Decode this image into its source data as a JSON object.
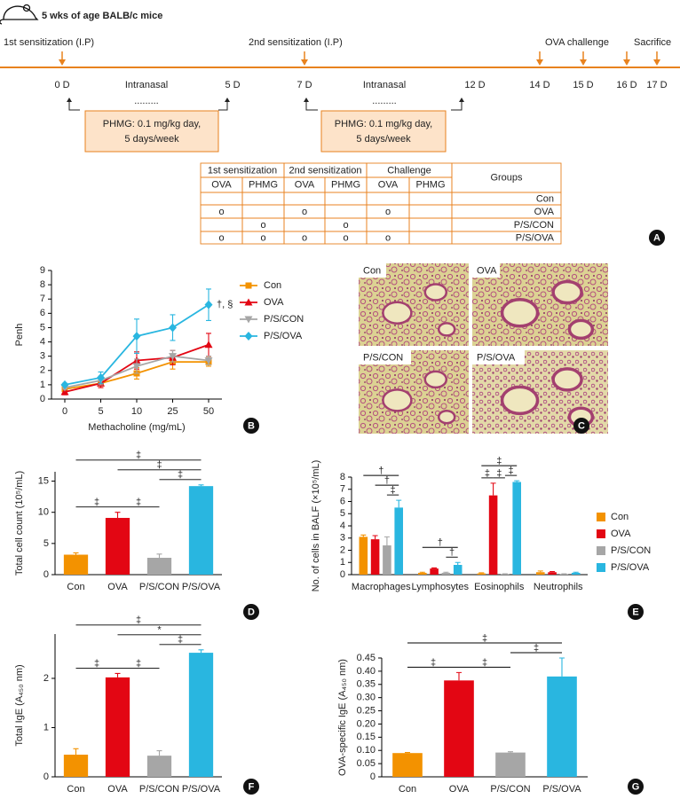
{
  "timeline": {
    "title": "5 wks of age BALB/c mice",
    "events": [
      "1st sensitization (I.P)",
      "2nd sensitization (I.P)",
      "OVA challenge",
      "Sacrifice"
    ],
    "days": [
      "0 D",
      "5 D",
      "7 D",
      "12 D",
      "14 D",
      "15 D",
      "16 D",
      "17 D"
    ],
    "phases": [
      {
        "label": "Intranasal",
        "dots": "........."
      },
      {
        "label": "Intranasal",
        "dots": "........."
      }
    ],
    "treatments": [
      [
        "PHMG: 0.1 mg/kg day,",
        "5 days/week"
      ],
      [
        "PHMG: 0.1 mg/kg day,",
        "5 days/week"
      ]
    ],
    "panel_label": "A"
  },
  "table": {
    "group_headers": [
      "1st sensitization",
      "2nd sensitization",
      "Challenge"
    ],
    "groups_header": "Groups",
    "subheaders": [
      "OVA",
      "PHMG",
      "OVA",
      "PHMG",
      "OVA",
      "PHMG"
    ],
    "rows": [
      [
        null,
        null,
        null,
        null,
        null,
        null,
        "Con"
      ],
      [
        "o",
        null,
        "o",
        null,
        "o",
        null,
        "OVA"
      ],
      [
        null,
        "o",
        null,
        "o",
        null,
        null,
        "P/S/CON"
      ],
      [
        "o",
        "o",
        "o",
        "o",
        "o",
        null,
        "P/S/OVA"
      ]
    ]
  },
  "histology": {
    "labels": [
      "Con",
      "OVA",
      "P/S/CON",
      "P/S/OVA"
    ],
    "panel_label": "C"
  },
  "chart_data": [
    {
      "type": "line",
      "panel_label": "B",
      "categories": [
        "0",
        "5",
        "10",
        "25",
        "50"
      ],
      "x_label": "Methacholine (mg/mL)",
      "y_label": "Penh",
      "ylim": [
        0,
        9
      ],
      "yticks": [
        0,
        1,
        2,
        3,
        4,
        5,
        6,
        7,
        8,
        9
      ],
      "annotation": "†, §",
      "series": [
        {
          "name": "Con",
          "color": "#f39200",
          "marker": "square",
          "values": [
            0.7,
            1.1,
            1.8,
            2.6,
            2.6
          ],
          "errors": [
            0.1,
            0.3,
            0.4,
            0.5,
            0.3
          ]
        },
        {
          "name": "OVA",
          "color": "#e30613",
          "marker": "triangle-up",
          "values": [
            0.5,
            1.1,
            2.7,
            2.9,
            3.8
          ],
          "errors": [
            0.2,
            0.3,
            0.6,
            0.5,
            0.8
          ]
        },
        {
          "name": "P/S/CON",
          "color": "#a6a6a6",
          "marker": "triangle-down",
          "values": [
            0.8,
            1.3,
            2.3,
            3.0,
            2.7
          ],
          "errors": [
            0.1,
            0.3,
            0.5,
            0.4,
            0.3
          ]
        },
        {
          "name": "P/S/OVA",
          "color": "#29b6e0",
          "marker": "diamond",
          "values": [
            1.0,
            1.5,
            4.4,
            5.0,
            6.6
          ],
          "errors": [
            0.1,
            0.4,
            1.2,
            0.9,
            1.1
          ]
        }
      ]
    },
    {
      "type": "bar",
      "panel_label": "D",
      "categories": [
        "Con",
        "OVA",
        "P/S/CON",
        "P/S/OVA"
      ],
      "colors": [
        "#f39200",
        "#e30613",
        "#a6a6a6",
        "#29b6e0"
      ],
      "values": [
        3.2,
        9.1,
        2.7,
        14.2
      ],
      "errors": [
        0.3,
        0.9,
        0.6,
        0.2
      ],
      "y_label": "Total cell count (10⁵/mL)",
      "ylim": [
        0,
        16.5
      ],
      "yticks": [
        0,
        5,
        10,
        15
      ],
      "brackets": [
        {
          "between": [
            "Con",
            "OVA"
          ],
          "label": "‡"
        },
        {
          "between": [
            "OVA",
            "P/S/CON"
          ],
          "label": "‡"
        },
        {
          "between": [
            "P/S/CON",
            "P/S/OVA"
          ],
          "label": "‡"
        },
        {
          "between": [
            "OVA",
            "P/S/OVA"
          ],
          "label": "‡"
        },
        {
          "between": [
            "Con",
            "P/S/OVA"
          ],
          "label": "‡"
        }
      ]
    },
    {
      "type": "bar",
      "panel_label": "E",
      "categories": [
        "Macrophages",
        "Lymphosytes",
        "Eosinophils",
        "Neutrophils"
      ],
      "y_label": "No. of cells in BALF (×10⁵/mL)",
      "ylim": [
        0,
        8
      ],
      "yticks": [
        0,
        1,
        2,
        3,
        4,
        5,
        6,
        7,
        8
      ],
      "series": [
        {
          "name": "Con",
          "color": "#f39200",
          "values": [
            3.1,
            0.15,
            0.1,
            0.2
          ],
          "errors": [
            0.15,
            0.05,
            0.05,
            0.1
          ]
        },
        {
          "name": "OVA",
          "color": "#e30613",
          "values": [
            2.9,
            0.5,
            6.5,
            0.2
          ],
          "errors": [
            0.3,
            0.05,
            1.0,
            0.05
          ]
        },
        {
          "name": "P/S/CON",
          "color": "#a6a6a6",
          "values": [
            2.4,
            0.15,
            0.05,
            0.05
          ],
          "errors": [
            0.7,
            0.05,
            0.02,
            0.02
          ]
        },
        {
          "name": "P/S/OVA",
          "color": "#29b6e0",
          "values": [
            5.5,
            0.8,
            7.6,
            0.15
          ],
          "errors": [
            0.6,
            0.2,
            0.1,
            0.05
          ]
        }
      ],
      "brackets": [
        {
          "category": "Macrophages",
          "between": [
            "P/S/CON",
            "P/S/OVA"
          ],
          "label": "‡"
        },
        {
          "category": "Macrophages",
          "between": [
            "OVA",
            "P/S/OVA"
          ],
          "label": "†"
        },
        {
          "category": "Macrophages",
          "between": [
            "Con",
            "P/S/OVA"
          ],
          "label": "†"
        },
        {
          "category": "Lymphosytes",
          "between": [
            "P/S/CON",
            "P/S/OVA"
          ],
          "label": "†"
        },
        {
          "category": "Lymphosytes",
          "between": [
            "Con",
            "P/S/OVA"
          ],
          "label": "†"
        },
        {
          "category": "Eosinophils",
          "between": [
            "Con",
            "OVA"
          ],
          "label": "‡"
        },
        {
          "category": "Eosinophils",
          "between": [
            "OVA",
            "P/S/CON"
          ],
          "label": "‡"
        },
        {
          "category": "Eosinophils",
          "between": [
            "P/S/CON",
            "P/S/OVA"
          ],
          "label": "‡"
        },
        {
          "category": "Eosinophils",
          "between": [
            "Con",
            "P/S/OVA"
          ],
          "label": "‡"
        }
      ]
    },
    {
      "type": "bar",
      "panel_label": "F",
      "categories": [
        "Con",
        "OVA",
        "P/S/CON",
        "P/S/OVA"
      ],
      "colors": [
        "#f39200",
        "#e30613",
        "#a6a6a6",
        "#29b6e0"
      ],
      "values": [
        0.45,
        2.02,
        0.43,
        2.52
      ],
      "errors": [
        0.12,
        0.08,
        0.1,
        0.06
      ],
      "y_label": "Total IgE (A₄₅₀ nm)",
      "ylim": [
        0,
        2.9
      ],
      "yticks": [
        0,
        1,
        2
      ],
      "brackets": [
        {
          "between": [
            "Con",
            "OVA"
          ],
          "label": "‡"
        },
        {
          "between": [
            "OVA",
            "P/S/CON"
          ],
          "label": "‡"
        },
        {
          "between": [
            "P/S/CON",
            "P/S/OVA"
          ],
          "label": "‡"
        },
        {
          "between": [
            "OVA",
            "P/S/OVA"
          ],
          "label": "*"
        },
        {
          "between": [
            "Con",
            "P/S/OVA"
          ],
          "label": "‡"
        }
      ]
    },
    {
      "type": "bar",
      "panel_label": "G",
      "categories": [
        "Con",
        "OVA",
        "P/S/CON",
        "P/S/OVA"
      ],
      "colors": [
        "#f39200",
        "#e30613",
        "#a6a6a6",
        "#29b6e0"
      ],
      "values": [
        0.09,
        0.365,
        0.092,
        0.38
      ],
      "errors": [
        0.002,
        0.03,
        0.003,
        0.07
      ],
      "y_label": "OVA-specific IgE (A₄₅₀ nm)",
      "ylim": [
        0,
        0.45
      ],
      "yticks": [
        0,
        0.05,
        {
          "value": 0.1,
          "label": "0.10"
        },
        0.15,
        {
          "value": 0.2,
          "label": "0.20"
        },
        0.25,
        {
          "value": 0.3,
          "label": "0.30"
        },
        0.35,
        {
          "value": 0.4,
          "label": "0.40"
        },
        0.45
      ],
      "brackets": [
        {
          "between": [
            "Con",
            "OVA"
          ],
          "label": "‡"
        },
        {
          "between": [
            "OVA",
            "P/S/CON"
          ],
          "label": "‡"
        },
        {
          "between": [
            "P/S/CON",
            "P/S/OVA"
          ],
          "label": "‡"
        },
        {
          "between": [
            "Con",
            "P/S/OVA"
          ],
          "label": "‡"
        }
      ]
    }
  ]
}
